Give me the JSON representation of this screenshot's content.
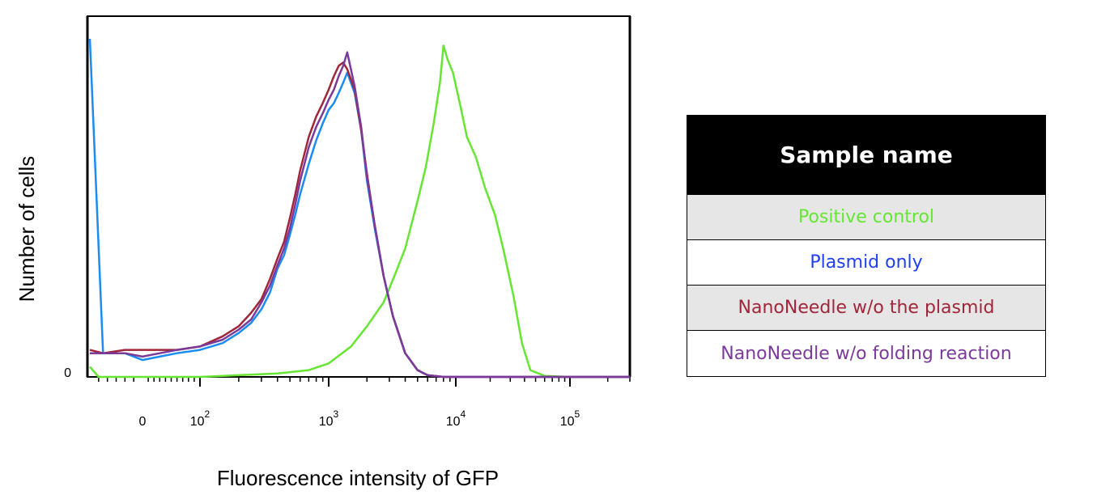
{
  "chart_data": {
    "type": "line",
    "xlabel": "Fluorescence intensity of GFP",
    "ylabel": "Number of cells",
    "x_scale": "biexponential",
    "xlim": [
      -60,
      300000
    ],
    "ylim": [
      0,
      100
    ],
    "y_ticks": [
      {
        "value": 0,
        "label": "0"
      }
    ],
    "x_ticks": [
      {
        "value": 0,
        "base": "0",
        "exp": ""
      },
      {
        "value": 100,
        "base": "10",
        "exp": "2"
      },
      {
        "value": 1000,
        "base": "10",
        "exp": "3"
      },
      {
        "value": 10000,
        "base": "10",
        "exp": "4"
      },
      {
        "value": 100000,
        "base": "10",
        "exp": "5"
      }
    ],
    "grid": false,
    "series": [
      {
        "name": "Positive control",
        "color": "#66e633",
        "x": [
          -60,
          -50,
          100,
          200,
          400,
          700,
          1000,
          1500,
          2000,
          2700,
          3300,
          4000,
          5000,
          5800,
          6700,
          7500,
          8000,
          8600,
          9500,
          11000,
          12500,
          15000,
          18000,
          22000,
          26000,
          32000,
          38000,
          45000,
          60000,
          100000,
          300000
        ],
        "y": [
          3,
          0,
          0,
          0.5,
          1,
          2,
          4,
          9,
          15,
          22,
          30,
          38,
          52,
          62,
          75,
          87,
          98,
          94,
          90,
          80,
          71,
          65,
          56,
          48,
          38,
          24,
          10,
          2,
          0.3,
          0,
          0
        ]
      },
      {
        "name": "Plasmid only",
        "color": "#1b8cf0",
        "x": [
          -60,
          -45,
          -20,
          0,
          30,
          60,
          100,
          150,
          200,
          250,
          300,
          350,
          400,
          450,
          500,
          550,
          600,
          700,
          800,
          900,
          1000,
          1100,
          1200,
          1300,
          1400,
          1600,
          1800,
          2000,
          2300,
          2700,
          3200,
          4000,
          5000,
          6000,
          8000,
          300000
        ],
        "y": [
          100,
          7,
          7,
          5,
          6,
          7,
          8,
          10,
          13,
          16,
          20,
          25,
          32,
          36,
          42,
          48,
          54,
          63,
          70,
          75,
          79,
          81,
          84,
          87,
          90,
          84,
          73,
          58,
          44,
          30,
          18,
          7,
          2,
          0.5,
          0,
          0
        ]
      },
      {
        "name": "NanoNeedle w/o the plasmid",
        "color": "#a0263a",
        "x": [
          -60,
          -45,
          -20,
          0,
          30,
          60,
          100,
          150,
          200,
          250,
          300,
          350,
          400,
          450,
          500,
          550,
          600,
          700,
          800,
          900,
          1000,
          1100,
          1200,
          1300,
          1400,
          1600,
          1800,
          2000,
          2300,
          2700,
          3200,
          4000,
          5000,
          6000,
          8000,
          300000
        ],
        "y": [
          8,
          7,
          8,
          8,
          8,
          8,
          9,
          12,
          15,
          19,
          23,
          29,
          35,
          40,
          47,
          54,
          61,
          71,
          77,
          81,
          85,
          89,
          92,
          93,
          91,
          85,
          73,
          60,
          45,
          30,
          18,
          7,
          2,
          0.5,
          0,
          0
        ]
      },
      {
        "name": "NanoNeedle w/o folding reaction",
        "color": "#7b3a9b",
        "x": [
          -60,
          -45,
          -20,
          0,
          30,
          60,
          100,
          150,
          200,
          250,
          300,
          350,
          400,
          450,
          500,
          550,
          600,
          700,
          800,
          900,
          1000,
          1100,
          1200,
          1300,
          1400,
          1600,
          1800,
          2000,
          2300,
          2700,
          3200,
          4000,
          5000,
          6000,
          8000,
          300000
        ],
        "y": [
          7,
          7,
          7,
          6,
          7,
          8,
          9,
          11,
          14,
          17,
          22,
          27,
          33,
          38,
          44,
          51,
          58,
          68,
          74,
          78,
          82,
          85,
          89,
          92,
          96,
          86,
          74,
          59,
          45,
          30,
          18,
          7,
          2,
          0.5,
          0,
          0
        ]
      }
    ]
  },
  "legend": {
    "title": "Sample name",
    "rows": [
      {
        "label": "Positive control",
        "color": "#66e633"
      },
      {
        "label": "Plasmid only",
        "color": "#1f3ff2"
      },
      {
        "label": "NanoNeedle w/o the plasmid",
        "color": "#a0263a"
      },
      {
        "label": "NanoNeedle w/o folding reaction",
        "color": "#7b3a9b"
      }
    ]
  }
}
